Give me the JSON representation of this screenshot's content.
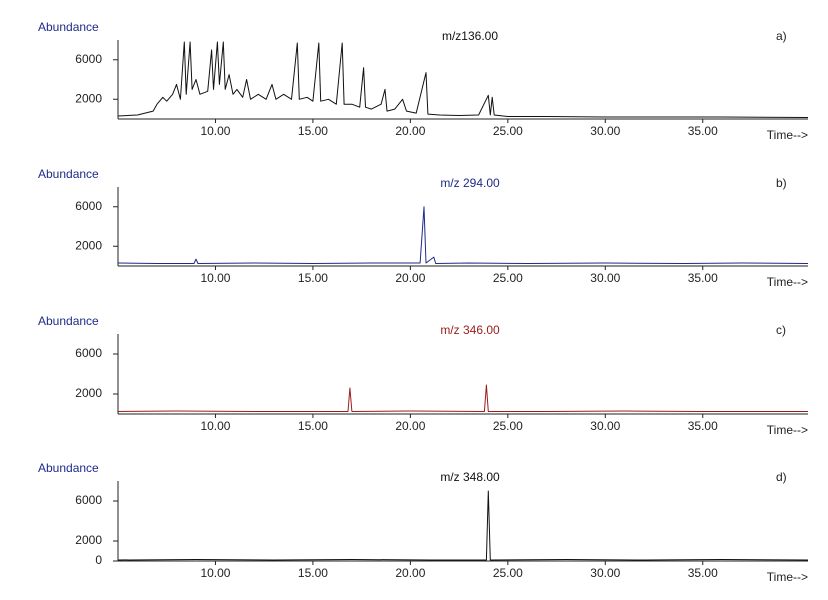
{
  "chart_data": [
    {
      "type": "line",
      "title": "m/z136.00",
      "label": "a)",
      "y_label": "Abundance",
      "x_label": "Time-->",
      "x": [
        5.0,
        6.0,
        6.8,
        7.0,
        7.3,
        7.5,
        7.8,
        8.0,
        8.2,
        8.4,
        8.5,
        8.7,
        8.8,
        9.0,
        9.2,
        9.6,
        9.8,
        9.9,
        10.1,
        10.2,
        10.4,
        10.5,
        10.7,
        10.9,
        11.1,
        11.4,
        11.6,
        11.8,
        12.2,
        12.6,
        12.9,
        13.1,
        13.5,
        13.9,
        14.2,
        14.3,
        14.7,
        15.0,
        15.3,
        15.4,
        15.8,
        16.2,
        16.5,
        16.6,
        17.0,
        17.4,
        17.6,
        17.7,
        18.0,
        18.5,
        18.7,
        18.8,
        19.2,
        19.6,
        19.8,
        20.3,
        20.8,
        20.9,
        21.5,
        22.5,
        23.5,
        24.0,
        24.1,
        24.2,
        24.3,
        25,
        27,
        30,
        33,
        36,
        40.4
      ],
      "series": [
        {
          "color": "#111111",
          "values": [
            300,
            400,
            800,
            1500,
            2200,
            1800,
            2500,
            3500,
            2000,
            7800,
            2500,
            7800,
            3000,
            4000,
            2500,
            2800,
            7000,
            3000,
            7800,
            3500,
            7800,
            3000,
            4500,
            2500,
            3000,
            2200,
            4000,
            2000,
            2500,
            2000,
            3500,
            2000,
            2500,
            2000,
            7700,
            2000,
            2200,
            1800,
            7700,
            1800,
            2000,
            1500,
            7700,
            1500,
            1500,
            1200,
            5200,
            1200,
            1000,
            1500,
            3000,
            800,
            1000,
            2000,
            800,
            600,
            4700,
            500,
            400,
            350,
            400,
            2400,
            400,
            2200,
            400,
            250,
            250,
            200,
            200,
            200,
            150
          ]
        }
      ],
      "xlim": [
        5,
        40.4
      ],
      "ylim": [
        0,
        8000
      ],
      "xticks": [
        {
          "value": 10,
          "label": "10.00"
        },
        {
          "value": 15,
          "label": "15.00"
        },
        {
          "value": 20,
          "label": "20.00"
        },
        {
          "value": 25,
          "label": "25.00"
        },
        {
          "value": 30,
          "label": "30.00"
        },
        {
          "value": 35,
          "label": "35.00"
        }
      ],
      "yticks": [
        2000,
        6000
      ]
    },
    {
      "type": "line",
      "title": "m/z 294.00",
      "label": "b)",
      "y_label": "Abundance",
      "x_label": "Time-->",
      "x": [
        5,
        7,
        8.9,
        9.0,
        9.1,
        12,
        15,
        18,
        20.5,
        20.7,
        20.8,
        21.2,
        21.3,
        23,
        26,
        30,
        34,
        37,
        40.4
      ],
      "series": [
        {
          "color": "#1f2a8a",
          "values": [
            300,
            250,
            250,
            700,
            250,
            300,
            250,
            300,
            300,
            6000,
            300,
            900,
            250,
            300,
            250,
            300,
            250,
            300,
            250
          ]
        }
      ],
      "xlim": [
        5,
        40.4
      ],
      "ylim": [
        0,
        8000
      ],
      "xticks": [
        {
          "value": 10,
          "label": "10.00"
        },
        {
          "value": 15,
          "label": "15.00"
        },
        {
          "value": 20,
          "label": "20.00"
        },
        {
          "value": 25,
          "label": "25.00"
        },
        {
          "value": 30,
          "label": "30.00"
        },
        {
          "value": 35,
          "label": "35.00"
        }
      ],
      "yticks": [
        2000,
        6000
      ]
    },
    {
      "type": "line",
      "title": "m/z 346.00",
      "label": "c)",
      "y_label": "Abundance",
      "x_label": "Time-->",
      "x": [
        5,
        8,
        12,
        16.8,
        16.9,
        17.0,
        20,
        23.8,
        23.9,
        24.0,
        27,
        31,
        35,
        40.4
      ],
      "series": [
        {
          "color": "#9b1c1c",
          "values": [
            250,
            300,
            250,
            250,
            2600,
            250,
            300,
            250,
            2900,
            250,
            250,
            300,
            250,
            250
          ]
        }
      ],
      "xlim": [
        5,
        40.4
      ],
      "ylim": [
        0,
        8000
      ],
      "xticks": [
        {
          "value": 10,
          "label": "10.00"
        },
        {
          "value": 15,
          "label": "15.00"
        },
        {
          "value": 20,
          "label": "20.00"
        },
        {
          "value": 25,
          "label": "25.00"
        },
        {
          "value": 30,
          "label": "30.00"
        },
        {
          "value": 35,
          "label": "35.00"
        }
      ],
      "yticks": [
        2000,
        6000
      ]
    },
    {
      "type": "line",
      "title": "m/z 348.00",
      "label": "d)",
      "y_label": "Abundance",
      "x_label": "Time-->",
      "x": [
        5,
        9,
        13,
        17,
        21,
        23.9,
        24.0,
        24.1,
        28,
        32,
        36,
        40.4
      ],
      "series": [
        {
          "color": "#111111",
          "values": [
            100,
            150,
            100,
            150,
            100,
            100,
            7000,
            100,
            150,
            100,
            150,
            100
          ]
        }
      ],
      "xlim": [
        5,
        40.4
      ],
      "ylim": [
        0,
        8000
      ],
      "xticks": [
        {
          "value": 10,
          "label": "10.00"
        },
        {
          "value": 15,
          "label": "15.00"
        },
        {
          "value": 20,
          "label": "20.00"
        },
        {
          "value": 25,
          "label": "25.00"
        },
        {
          "value": 30,
          "label": "30.00"
        },
        {
          "value": 35,
          "label": "35.00"
        }
      ],
      "yticks": [
        0,
        2000,
        6000
      ]
    }
  ]
}
